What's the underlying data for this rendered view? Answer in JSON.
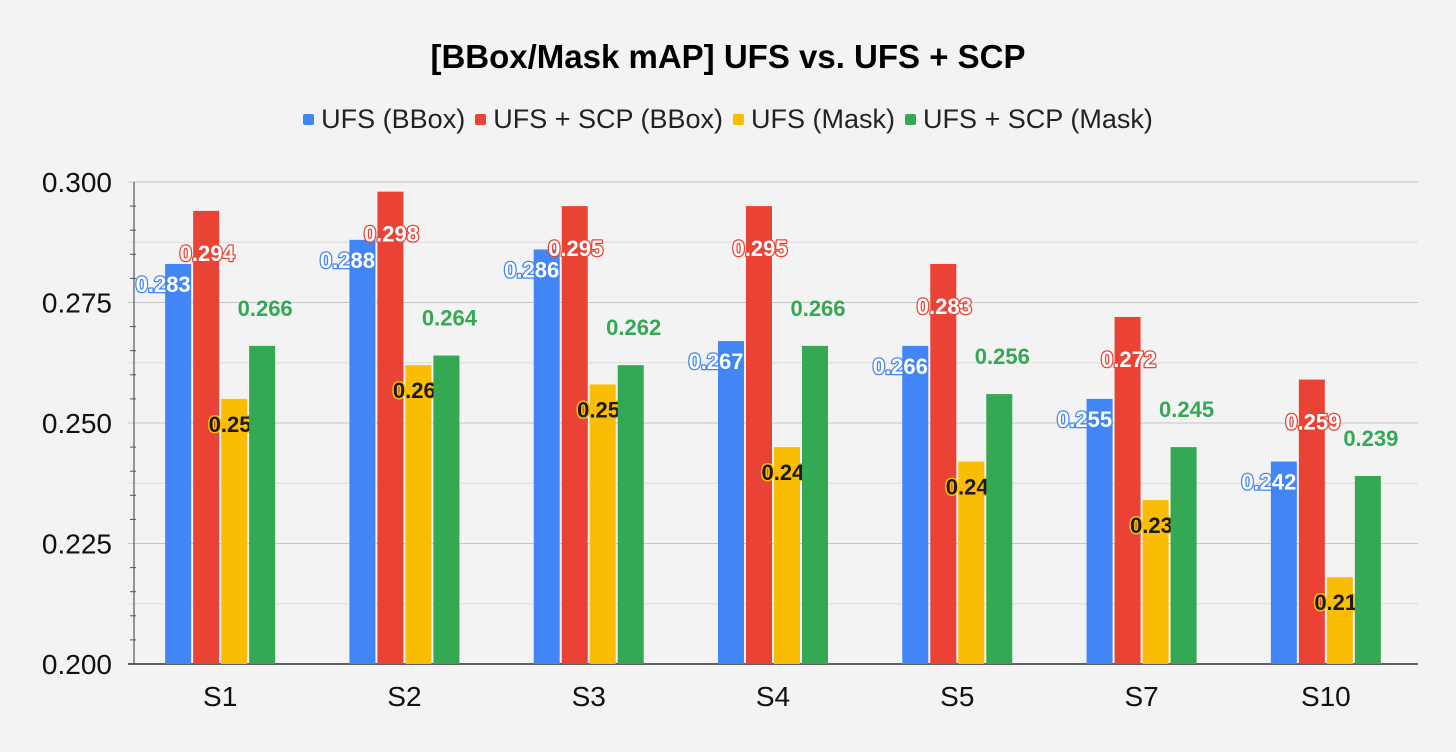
{
  "chart_data": {
    "type": "bar",
    "title": "[BBox/Mask mAP] UFS vs. UFS + SCP",
    "xlabel": "",
    "ylabel": "",
    "categories": [
      "S1",
      "S2",
      "S3",
      "S4",
      "S5",
      "S7",
      "S10"
    ],
    "ylim": [
      0.2,
      0.3
    ],
    "yticks": [
      "0.200",
      "0.225",
      "0.250",
      "0.275",
      "0.300"
    ],
    "grid": true,
    "legend_position": "top",
    "series": [
      {
        "name": "UFS (BBox)",
        "color": "#4285f4",
        "label_style": "outlined-white",
        "values": [
          0.283,
          0.288,
          0.286,
          0.267,
          0.266,
          0.255,
          0.242
        ]
      },
      {
        "name": "UFS + SCP (BBox)",
        "color": "#ea4335",
        "label_style": "outlined-white",
        "values": [
          0.294,
          0.298,
          0.295,
          0.295,
          0.283,
          0.272,
          0.259
        ]
      },
      {
        "name": "UFS (Mask)",
        "color": "#fbbc04",
        "label_style": "outlined-dark",
        "values": [
          0.255,
          0.262,
          0.258,
          0.245,
          0.242,
          0.234,
          0.218
        ]
      },
      {
        "name": "UFS + SCP (Mask)",
        "color": "#34a853",
        "label_style": "plain",
        "values": [
          0.266,
          0.264,
          0.262,
          0.266,
          0.256,
          0.245,
          0.239
        ]
      }
    ]
  }
}
